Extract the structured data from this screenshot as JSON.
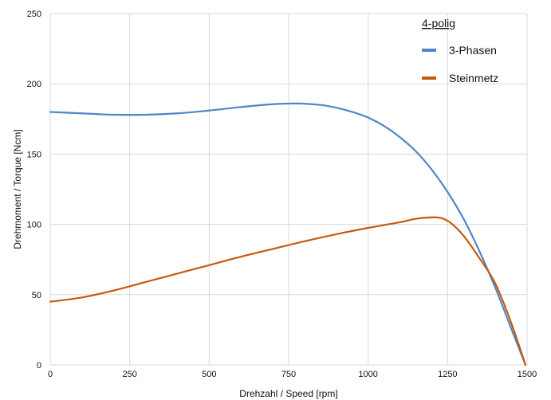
{
  "chart_data": {
    "type": "line",
    "xlabel": "Drehzahl / Speed [rpm]",
    "ylabel": "Drehmoment / Torque [Ncm]",
    "xlim": [
      0,
      1500
    ],
    "ylim": [
      0,
      250
    ],
    "xticks": [
      0,
      250,
      500,
      750,
      1000,
      1250,
      1500
    ],
    "yticks": [
      0,
      50,
      100,
      150,
      200,
      250
    ],
    "grid": true,
    "legend_title": "4-polig",
    "legend_position": "top-right",
    "series": [
      {
        "name": "3-Phasen",
        "color": "#4f86c6",
        "points": [
          [
            0,
            180
          ],
          [
            100,
            179
          ],
          [
            200,
            178
          ],
          [
            300,
            178
          ],
          [
            400,
            179
          ],
          [
            500,
            181
          ],
          [
            600,
            183.5
          ],
          [
            700,
            185.5
          ],
          [
            780,
            186
          ],
          [
            850,
            185
          ],
          [
            900,
            183
          ],
          [
            950,
            180
          ],
          [
            1000,
            176
          ],
          [
            1050,
            170
          ],
          [
            1100,
            162
          ],
          [
            1150,
            152
          ],
          [
            1200,
            139
          ],
          [
            1250,
            123
          ],
          [
            1300,
            104
          ],
          [
            1350,
            81
          ],
          [
            1400,
            55
          ],
          [
            1450,
            26
          ],
          [
            1495,
            0
          ]
        ]
      },
      {
        "name": "Steinmetz",
        "color": "#c55a11",
        "points": [
          [
            0,
            45
          ],
          [
            100,
            48
          ],
          [
            200,
            53
          ],
          [
            300,
            59
          ],
          [
            400,
            65
          ],
          [
            500,
            71
          ],
          [
            600,
            77
          ],
          [
            700,
            82.5
          ],
          [
            800,
            88
          ],
          [
            900,
            93
          ],
          [
            1000,
            97.5
          ],
          [
            1100,
            101.5
          ],
          [
            1150,
            104
          ],
          [
            1200,
            105
          ],
          [
            1230,
            104.5
          ],
          [
            1260,
            101
          ],
          [
            1300,
            92
          ],
          [
            1350,
            76
          ],
          [
            1400,
            58
          ],
          [
            1450,
            30
          ],
          [
            1495,
            0
          ]
        ]
      }
    ]
  }
}
